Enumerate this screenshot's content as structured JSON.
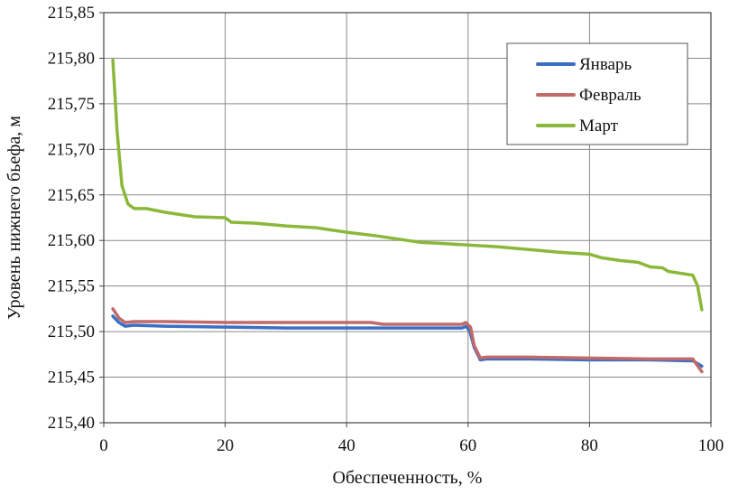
{
  "chart_data": {
    "type": "line",
    "title": "",
    "xlabel": "Обеспеченность, %",
    "ylabel": "Уровень нижнего бьефа, м",
    "xlim": [
      0,
      100
    ],
    "ylim": [
      215.4,
      215.85
    ],
    "xticks": [
      0,
      20,
      40,
      60,
      80,
      100
    ],
    "yticks": [
      215.4,
      215.45,
      215.5,
      215.55,
      215.6,
      215.65,
      215.7,
      215.75,
      215.8,
      215.85
    ],
    "xtick_labels": [
      "0",
      "20",
      "40",
      "60",
      "80",
      "100"
    ],
    "ytick_labels": [
      "215,40",
      "215,45",
      "215,50",
      "215,55",
      "215,60",
      "215,65",
      "215,70",
      "215,75",
      "215,80",
      "215,85"
    ],
    "grid": true,
    "legend_position": "top-right",
    "series": [
      {
        "name": "Январь",
        "color": "#3a6fc4",
        "x": [
          1.5,
          2.5,
          3.5,
          5,
          10,
          20,
          30,
          40,
          50,
          59,
          59.7,
          60.3,
          61,
          62,
          63,
          70,
          80,
          90,
          96,
          97,
          98.5
        ],
        "y": [
          215.517,
          215.51,
          215.506,
          215.507,
          215.506,
          215.505,
          215.504,
          215.504,
          215.504,
          215.504,
          215.506,
          215.5,
          215.483,
          215.469,
          215.47,
          215.47,
          215.469,
          215.469,
          215.468,
          215.468,
          215.462
        ]
      },
      {
        "name": "Февраль",
        "color": "#c06a6a",
        "x": [
          1.5,
          2.5,
          3.5,
          5,
          10,
          20,
          30,
          40,
          44,
          46,
          50,
          59,
          59.6,
          60.4,
          61,
          62,
          63,
          70,
          80,
          90,
          96,
          97,
          98.5
        ],
        "y": [
          215.525,
          215.515,
          215.51,
          215.511,
          215.511,
          215.51,
          215.51,
          215.51,
          215.51,
          215.508,
          215.508,
          215.508,
          215.51,
          215.505,
          215.485,
          215.471,
          215.472,
          215.472,
          215.471,
          215.47,
          215.47,
          215.47,
          215.456
        ]
      },
      {
        "name": "Март",
        "color": "#8ab83a",
        "x": [
          1.5,
          2.2,
          3,
          4,
          5,
          7,
          10,
          15,
          20,
          21,
          25,
          30,
          35,
          38,
          40,
          45,
          50,
          52,
          55,
          60,
          65,
          70,
          75,
          80,
          82,
          85,
          88,
          90,
          92,
          93,
          97,
          97.8,
          98.5
        ],
        "y": [
          215.798,
          215.72,
          215.66,
          215.64,
          215.635,
          215.635,
          215.631,
          215.626,
          215.625,
          215.62,
          215.619,
          215.616,
          215.614,
          215.611,
          215.609,
          215.605,
          215.6,
          215.598,
          215.597,
          215.595,
          215.593,
          215.59,
          215.587,
          215.585,
          215.581,
          215.578,
          215.576,
          215.571,
          215.57,
          215.566,
          215.562,
          215.55,
          215.524
        ]
      }
    ]
  }
}
